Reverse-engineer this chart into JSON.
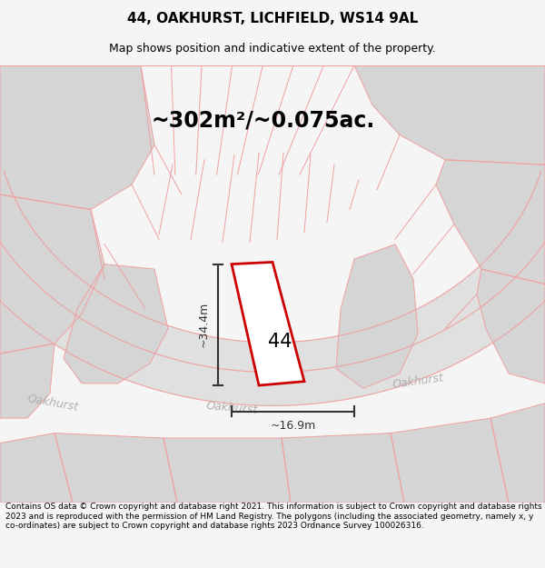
{
  "title_line1": "44, OAKHURST, LICHFIELD, WS14 9AL",
  "title_line2": "Map shows position and indicative extent of the property.",
  "area_text": "~302m²/~0.075ac.",
  "number_label": "44",
  "dim_vertical": "~34.4m",
  "dim_horizontal": "~16.9m",
  "footer_text": "Contains OS data © Crown copyright and database right 2021. This information is subject to Crown copyright and database rights 2023 and is reproduced with the permission of HM Land Registry. The polygons (including the associated geometry, namely x, y co-ordinates) are subject to Crown copyright and database rights 2023 Ordnance Survey 100026316.",
  "bg_color": "#f5f5f5",
  "map_bg": "#ffffff",
  "plot_color_fill": "#ffffff",
  "plot_color_border": "#cc0000",
  "road_label_color": "#b0b0b0",
  "line_color": "#f0a0a0",
  "grey_block_color": "#d5d5d5",
  "street_color": "#e0e0e0",
  "dim_line_color": "#333333"
}
